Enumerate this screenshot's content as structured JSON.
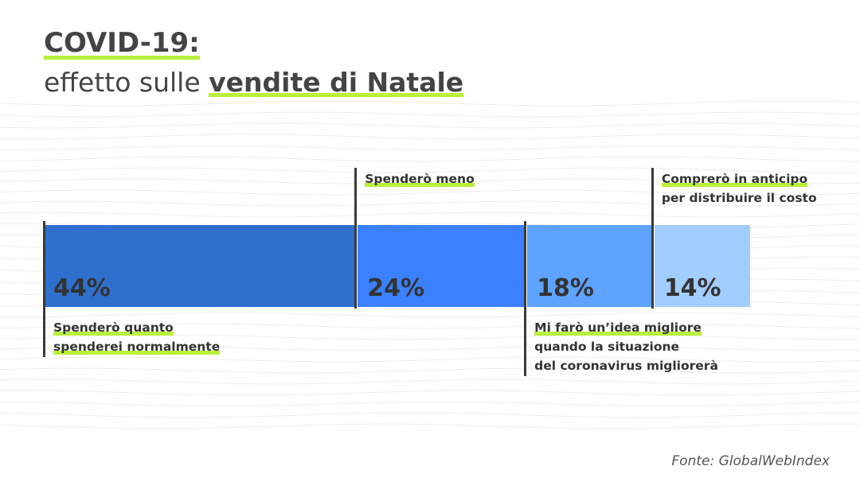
{
  "header": {
    "title": "COVID-19:",
    "subtitle_plain": "effetto sulle ",
    "subtitle_bold": "vendite di Natale"
  },
  "source": "Fonte: GlobalWebIndex",
  "colors": {
    "highlight": "#b8f03a",
    "text": "#333333"
  },
  "chart_data": {
    "type": "bar",
    "orientation": "horizontal-stacked",
    "categories": [
      "Spenderò quanto spenderei normalmente",
      "Spenderò meno",
      "Mi farò un’idea migliore quando la situazione del coronavirus migliorerà",
      "Comprerò in anticipo per distribuire il costo"
    ],
    "values": [
      44,
      24,
      18,
      14
    ],
    "value_labels": [
      "44%",
      "24%",
      "18%",
      "14%"
    ],
    "colors": [
      "#2f6fce",
      "#3a80ff",
      "#5ea3ff",
      "#a2cdff"
    ],
    "segments": [
      {
        "label_lines": [
          "Spenderò quanto",
          "spenderei normalmente"
        ],
        "highlight_lines": [
          0,
          1
        ],
        "label_position": "below"
      },
      {
        "label_lines": [
          "Spenderò meno"
        ],
        "highlight_lines": [
          0
        ],
        "label_position": "above"
      },
      {
        "label_lines": [
          "Mi farò un’idea migliore",
          "quando la situazione",
          "del coronavirus migliorerà"
        ],
        "highlight_lines": [
          0
        ],
        "label_position": "below"
      },
      {
        "label_lines": [
          "Comprerò in anticipo",
          "per distribuire il costo"
        ],
        "highlight_lines": [
          0
        ],
        "label_position": "above"
      }
    ],
    "unit": "%",
    "total": 100
  }
}
